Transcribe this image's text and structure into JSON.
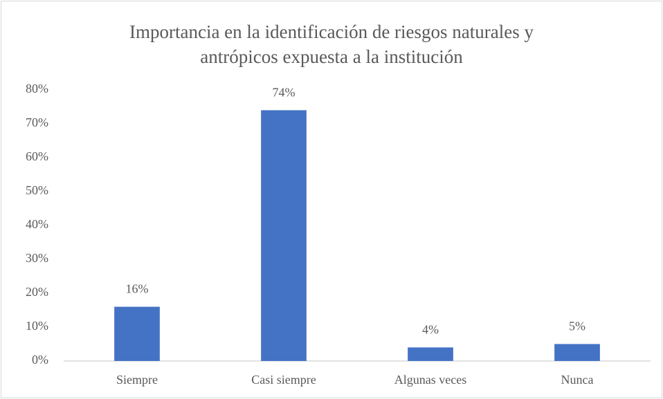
{
  "chart_data": {
    "type": "bar",
    "title": "Importancia en la identificación de riesgos naturales y antrópicos expuesta a la institución",
    "categories": [
      "Siempre",
      "Casi siempre",
      "Algunas veces",
      "Nunca"
    ],
    "values": [
      16,
      74,
      4,
      5
    ],
    "value_labels": [
      "16%",
      "74%",
      "4%",
      "5%"
    ],
    "color": "#4472c4",
    "ylim": [
      0,
      80
    ],
    "yticks": [
      {
        "value": 0,
        "label": "0%"
      },
      {
        "value": 10,
        "label": "10%"
      },
      {
        "value": 20,
        "label": "20%"
      },
      {
        "value": 30,
        "label": "30%"
      },
      {
        "value": 40,
        "label": "40%"
      },
      {
        "value": 50,
        "label": "50%"
      },
      {
        "value": 60,
        "label": "60%"
      },
      {
        "value": 70,
        "label": "70%"
      },
      {
        "value": 80,
        "label": "80%"
      }
    ],
    "grid": false
  }
}
